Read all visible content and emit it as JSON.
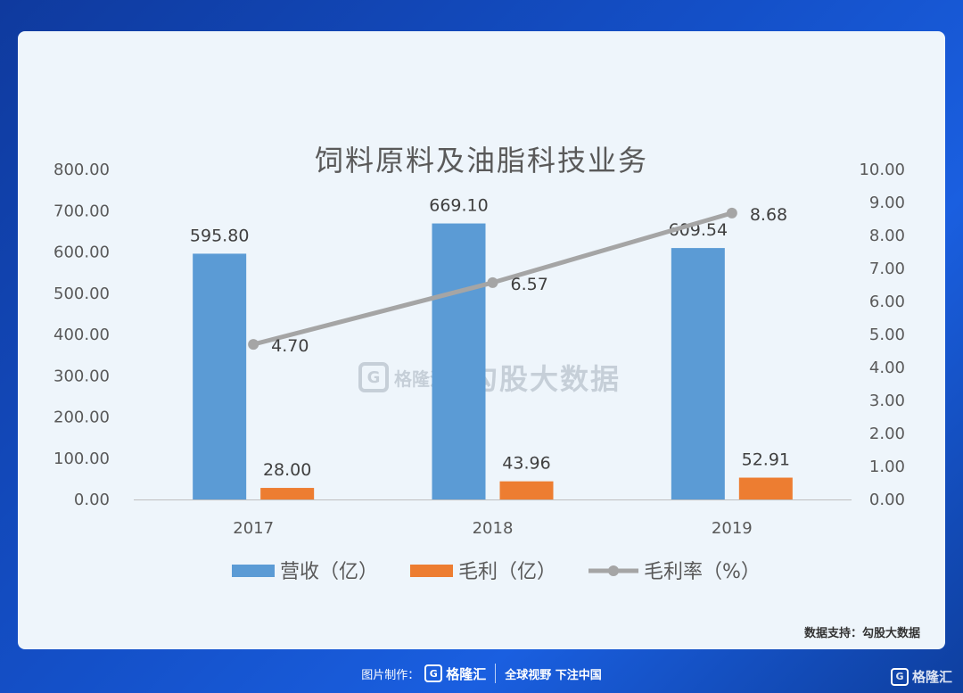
{
  "chart_data": {
    "type": "bar",
    "title": "饲料原料及油脂科技业务",
    "categories": [
      "2017",
      "2018",
      "2019"
    ],
    "series": [
      {
        "name": "营收（亿）",
        "kind": "bar",
        "axis": "left",
        "color": "#5b9bd5",
        "values": [
          595.8,
          669.1,
          609.54
        ],
        "labels": [
          "595.80",
          "669.10",
          "609.54"
        ]
      },
      {
        "name": "毛利（亿）",
        "kind": "bar",
        "axis": "left",
        "color": "#ed7d31",
        "values": [
          28.0,
          43.96,
          52.91
        ],
        "labels": [
          "28.00",
          "43.96",
          "52.91"
        ]
      },
      {
        "name": "毛利率（%）",
        "kind": "line",
        "axis": "right",
        "color": "#a5a5a5",
        "values": [
          4.7,
          6.57,
          8.68
        ],
        "labels": [
          "4.70",
          "6.57",
          "8.68"
        ]
      }
    ],
    "ylim": [
      0,
      800
    ],
    "y_ticks": [
      "0.00",
      "100.00",
      "200.00",
      "300.00",
      "400.00",
      "500.00",
      "600.00",
      "700.00",
      "800.00"
    ],
    "y2lim": [
      0,
      10
    ],
    "y2_ticks": [
      "0.00",
      "1.00",
      "2.00",
      "3.00",
      "4.00",
      "5.00",
      "6.00",
      "7.00",
      "8.00",
      "9.00",
      "10.00"
    ],
    "grid": false,
    "legend": "bottom"
  },
  "watermark": {
    "brand": "格隆汇",
    "logo_letter": "G",
    "text": "勾股大数据"
  },
  "source_note": "数据支持：勾股大数据",
  "footer": {
    "label": "图片制作：",
    "brand": "格隆汇",
    "logo_letter": "G",
    "slogan": "全球视野 下注中国"
  },
  "corner": {
    "brand": "格隆汇",
    "logo_letter": "G"
  }
}
